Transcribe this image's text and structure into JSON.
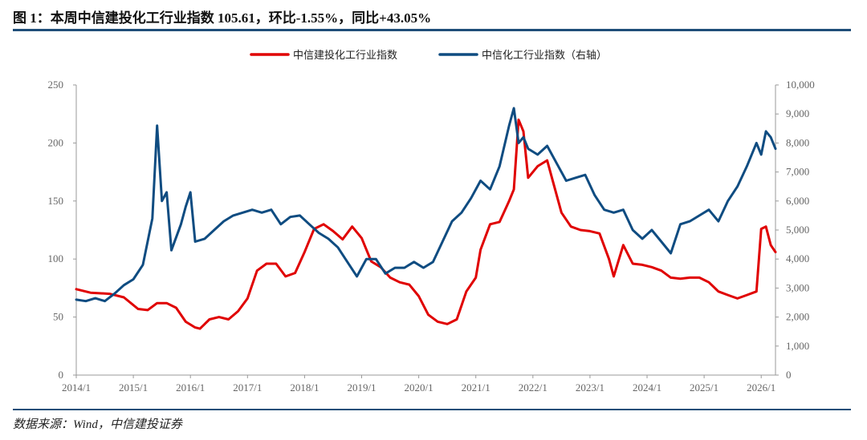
{
  "title": "图 1：本周中信建投化工行业指数 105.61，环比-1.55%，同比+43.05%",
  "source": "数据来源：Wind，中信建投证券",
  "colors": {
    "primary": "#e00000",
    "secondary": "#0f4c81",
    "rule": "#1f4e79"
  },
  "chart_data": {
    "type": "line",
    "legend": "top-center",
    "grid": false,
    "x_range": [
      "2014/1",
      "2026/4"
    ],
    "x_ticks": [
      "2014/1",
      "2015/1",
      "2016/1",
      "2017/1",
      "2018/1",
      "2019/1",
      "2020/1",
      "2021/1",
      "2022/1",
      "2023/1",
      "2024/1",
      "2025/1",
      "2026/1"
    ],
    "y_left": {
      "ticks": [
        "0",
        "50",
        "100",
        "150",
        "200",
        "250"
      ],
      "ylim": [
        0,
        250
      ]
    },
    "y_right": {
      "ticks": [
        "0",
        "1,000",
        "2,000",
        "3,000",
        "4,000",
        "5,000",
        "6,000",
        "7,000",
        "8,000",
        "9,000",
        "10,000"
      ],
      "ylim": [
        0,
        10000
      ]
    },
    "series": [
      {
        "name": "中信建投化工行业指数",
        "axis": "left",
        "color": "#e00000",
        "points": [
          [
            "2014-01",
            74
          ],
          [
            "2014-04",
            71
          ],
          [
            "2014-08",
            70
          ],
          [
            "2014-11",
            67
          ],
          [
            "2015-02",
            57
          ],
          [
            "2015-04",
            56
          ],
          [
            "2015-06",
            62
          ],
          [
            "2015-08",
            62
          ],
          [
            "2015-10",
            58
          ],
          [
            "2015-12",
            46
          ],
          [
            "2016-02",
            41
          ],
          [
            "2016-03",
            40
          ],
          [
            "2016-05",
            48
          ],
          [
            "2016-07",
            50
          ],
          [
            "2016-09",
            48
          ],
          [
            "2016-11",
            55
          ],
          [
            "2017-01",
            66
          ],
          [
            "2017-03",
            90
          ],
          [
            "2017-05",
            96
          ],
          [
            "2017-07",
            96
          ],
          [
            "2017-09",
            85
          ],
          [
            "2017-11",
            88
          ],
          [
            "2018-01",
            106
          ],
          [
            "2018-03",
            126
          ],
          [
            "2018-05",
            130
          ],
          [
            "2018-07",
            124
          ],
          [
            "2018-09",
            117
          ],
          [
            "2018-11",
            128
          ],
          [
            "2019-01",
            118
          ],
          [
            "2019-03",
            98
          ],
          [
            "2019-05",
            93
          ],
          [
            "2019-07",
            84
          ],
          [
            "2019-09",
            80
          ],
          [
            "2019-11",
            78
          ],
          [
            "2020-01",
            68
          ],
          [
            "2020-03",
            52
          ],
          [
            "2020-05",
            46
          ],
          [
            "2020-07",
            44
          ],
          [
            "2020-09",
            48
          ],
          [
            "2020-11",
            72
          ],
          [
            "2021-01",
            84
          ],
          [
            "2021-02",
            108
          ],
          [
            "2021-04",
            130
          ],
          [
            "2021-06",
            132
          ],
          [
            "2021-08",
            150
          ],
          [
            "2021-09",
            160
          ],
          [
            "2021-10",
            220
          ],
          [
            "2021-11",
            210
          ],
          [
            "2021-12",
            170
          ],
          [
            "2022-02",
            180
          ],
          [
            "2022-04",
            185
          ],
          [
            "2022-05",
            170
          ],
          [
            "2022-07",
            140
          ],
          [
            "2022-09",
            128
          ],
          [
            "2022-11",
            125
          ],
          [
            "2023-01",
            124
          ],
          [
            "2023-03",
            122
          ],
          [
            "2023-05",
            100
          ],
          [
            "2023-06",
            85
          ],
          [
            "2023-08",
            112
          ],
          [
            "2023-10",
            96
          ],
          [
            "2023-12",
            95
          ],
          [
            "2024-02",
            93
          ],
          [
            "2024-04",
            90
          ],
          [
            "2024-06",
            84
          ],
          [
            "2024-08",
            83
          ],
          [
            "2024-10",
            84
          ],
          [
            "2024-12",
            84
          ],
          [
            "2025-02",
            80
          ],
          [
            "2025-04",
            72
          ],
          [
            "2025-06",
            69
          ],
          [
            "2025-08",
            66
          ],
          [
            "2025-10",
            69
          ],
          [
            "2025-12",
            72
          ],
          [
            "2026-01",
            126
          ],
          [
            "2026-02",
            128
          ],
          [
            "2026-03",
            112
          ],
          [
            "2026-04",
            106
          ]
        ]
      },
      {
        "name": "中信化工行业指数（右轴）",
        "axis": "right",
        "color": "#0f4c81",
        "points": [
          [
            "2014-01",
            2600
          ],
          [
            "2014-03",
            2550
          ],
          [
            "2014-05",
            2650
          ],
          [
            "2014-07",
            2550
          ],
          [
            "2014-09",
            2800
          ],
          [
            "2014-11",
            3100
          ],
          [
            "2015-01",
            3300
          ],
          [
            "2015-03",
            3800
          ],
          [
            "2015-05",
            5400
          ],
          [
            "2015-06",
            8600
          ],
          [
            "2015-07",
            6000
          ],
          [
            "2015-08",
            6300
          ],
          [
            "2015-09",
            4300
          ],
          [
            "2015-11",
            5200
          ],
          [
            "2015-12",
            5800
          ],
          [
            "2016-01",
            6300
          ],
          [
            "2016-02",
            4600
          ],
          [
            "2016-04",
            4700
          ],
          [
            "2016-06",
            5000
          ],
          [
            "2016-08",
            5300
          ],
          [
            "2016-10",
            5500
          ],
          [
            "2016-12",
            5600
          ],
          [
            "2017-02",
            5700
          ],
          [
            "2017-04",
            5600
          ],
          [
            "2017-06",
            5700
          ],
          [
            "2017-08",
            5200
          ],
          [
            "2017-10",
            5450
          ],
          [
            "2017-12",
            5500
          ],
          [
            "2018-02",
            5200
          ],
          [
            "2018-04",
            4900
          ],
          [
            "2018-06",
            4700
          ],
          [
            "2018-08",
            4400
          ],
          [
            "2018-10",
            3900
          ],
          [
            "2018-12",
            3400
          ],
          [
            "2019-02",
            4000
          ],
          [
            "2019-04",
            4000
          ],
          [
            "2019-06",
            3500
          ],
          [
            "2019-08",
            3700
          ],
          [
            "2019-10",
            3700
          ],
          [
            "2019-12",
            3900
          ],
          [
            "2020-02",
            3700
          ],
          [
            "2020-04",
            3900
          ],
          [
            "2020-06",
            4600
          ],
          [
            "2020-08",
            5300
          ],
          [
            "2020-10",
            5600
          ],
          [
            "2020-12",
            6100
          ],
          [
            "2021-02",
            6700
          ],
          [
            "2021-04",
            6400
          ],
          [
            "2021-06",
            7200
          ],
          [
            "2021-08",
            8600
          ],
          [
            "2021-09",
            9200
          ],
          [
            "2021-10",
            8000
          ],
          [
            "2021-11",
            8200
          ],
          [
            "2021-12",
            7800
          ],
          [
            "2022-02",
            7600
          ],
          [
            "2022-04",
            7900
          ],
          [
            "2022-06",
            7300
          ],
          [
            "2022-08",
            6700
          ],
          [
            "2022-10",
            6800
          ],
          [
            "2022-12",
            6900
          ],
          [
            "2023-02",
            6200
          ],
          [
            "2023-04",
            5700
          ],
          [
            "2023-06",
            5600
          ],
          [
            "2023-08",
            5700
          ],
          [
            "2023-10",
            5000
          ],
          [
            "2023-12",
            4700
          ],
          [
            "2024-02",
            5000
          ],
          [
            "2024-04",
            4600
          ],
          [
            "2024-06",
            4200
          ],
          [
            "2024-08",
            5200
          ],
          [
            "2024-10",
            5300
          ],
          [
            "2024-12",
            5500
          ],
          [
            "2025-02",
            5700
          ],
          [
            "2025-04",
            5300
          ],
          [
            "2025-06",
            6000
          ],
          [
            "2025-08",
            6500
          ],
          [
            "2025-10",
            7200
          ],
          [
            "2025-12",
            8000
          ],
          [
            "2026-01",
            7600
          ],
          [
            "2026-02",
            8400
          ],
          [
            "2026-03",
            8200
          ],
          [
            "2026-04",
            7800
          ]
        ]
      }
    ]
  }
}
